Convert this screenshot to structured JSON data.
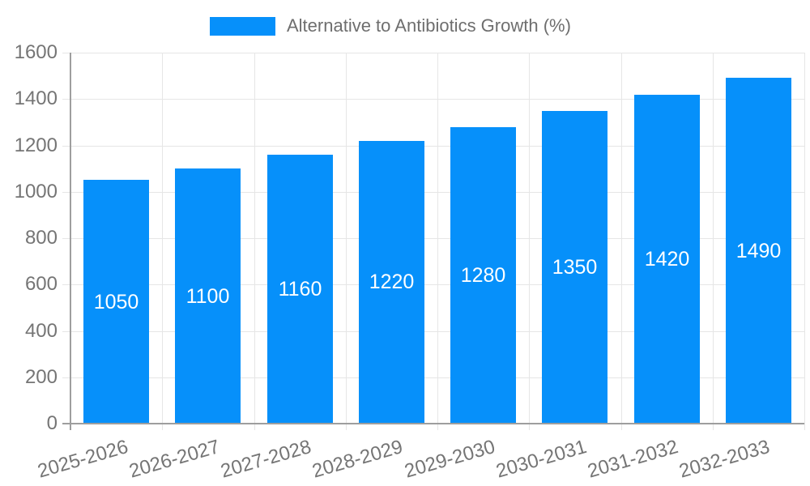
{
  "chart_data": {
    "type": "bar",
    "title": "Alternative to Antibiotics Growth (%)",
    "categories": [
      "2025-2026",
      "2026-2027",
      "2027-2028",
      "2028-2029",
      "2029-2030",
      "2030-2031",
      "2031-2032",
      "2032-2033"
    ],
    "values": [
      1050,
      1100,
      1160,
      1220,
      1280,
      1350,
      1420,
      1490
    ],
    "bar_value_labels": [
      "1050",
      "1100",
      "1160",
      "1220",
      "1280",
      "1350",
      "1420",
      "1490"
    ],
    "xlabel": "",
    "ylabel": "",
    "ylim": [
      0,
      1600
    ],
    "ytick_step": 200,
    "ytick_labels": [
      "0",
      "200",
      "400",
      "600",
      "800",
      "1000",
      "1200",
      "1400",
      "1600"
    ],
    "grid": true,
    "legend_position": "top-center",
    "colors": {
      "bar": "#0690FA",
      "bar_label_text": "#ffffff",
      "axis_text": "#757575",
      "legend_text": "#6e6e6e",
      "gridline": "#e6e6e6",
      "axis_line": "#9e9e9e",
      "background": "#ffffff"
    }
  }
}
